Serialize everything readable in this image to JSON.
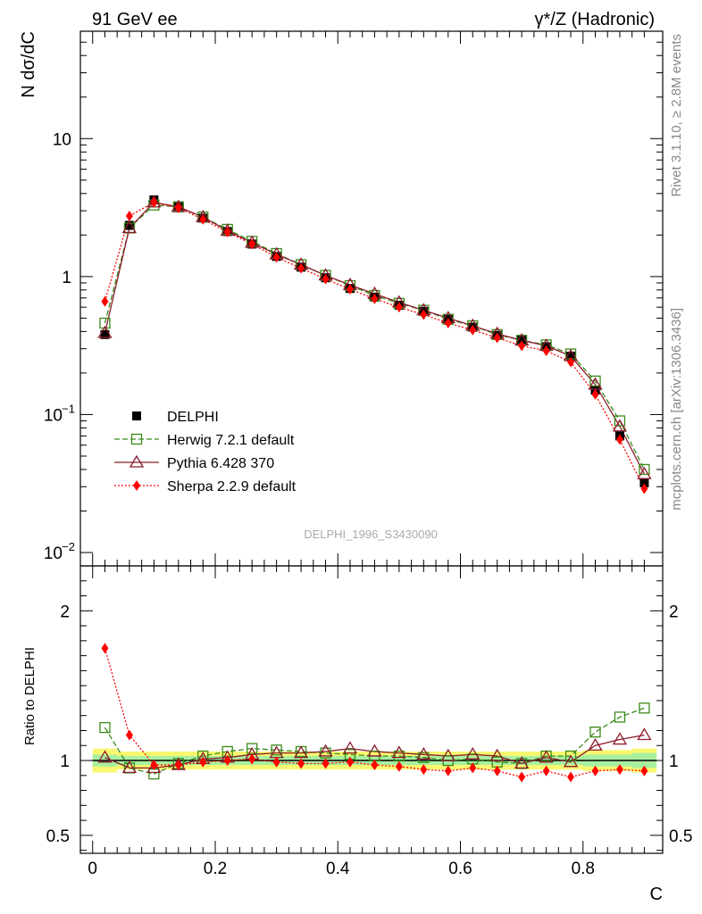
{
  "header": {
    "left_title": "91 GeV ee",
    "right_title": "γ*/Z (Hadronic)"
  },
  "side_labels": {
    "rivet": "Rivet 3.1.10, ≥ 2.8M events",
    "mcplots": "mcplots.cern.ch [arXiv:1306.3436]"
  },
  "watermark": "DELPHI_1996_S3430090",
  "colors": {
    "data": "#000000",
    "herwig": "#3a8a1a",
    "pythia": "#8b1a2b",
    "sherpa": "#ff0000",
    "band_inner": "#a8f0a0",
    "band_outer": "#f8f870"
  },
  "chart_data": [
    {
      "type": "line",
      "name": "main",
      "yscale": "log",
      "ylabel": "N dσ/dC",
      "xlim": [
        -0.02,
        0.93
      ],
      "ylim": [
        0.008,
        60
      ],
      "yticks": [
        {
          "value": 10,
          "label": "10"
        },
        {
          "value": 1,
          "label": "1"
        },
        {
          "value": 0.1,
          "label": "10",
          "sup": "−1"
        },
        {
          "value": 0.01,
          "label": "10",
          "sup": "−2"
        }
      ],
      "x": [
        0.02,
        0.06,
        0.1,
        0.14,
        0.18,
        0.22,
        0.26,
        0.3,
        0.34,
        0.38,
        0.42,
        0.46,
        0.5,
        0.54,
        0.58,
        0.62,
        0.66,
        0.7,
        0.74,
        0.78,
        0.82,
        0.86,
        0.9
      ],
      "legend_position": "lower-left",
      "series": [
        {
          "key": "data",
          "name": "DELPHI",
          "style": "marker-square",
          "values": [
            0.38,
            2.35,
            3.6,
            3.25,
            2.65,
            2.12,
            1.72,
            1.4,
            1.17,
            0.98,
            0.82,
            0.71,
            0.62,
            0.56,
            0.49,
            0.43,
            0.375,
            0.35,
            0.31,
            0.265,
            0.15,
            0.07,
            0.032
          ]
        },
        {
          "key": "herwig",
          "name": "Herwig 7.2.1 default",
          "style": "dashed-open-square",
          "values": [
            0.46,
            2.25,
            3.3,
            3.2,
            2.7,
            2.2,
            1.8,
            1.47,
            1.22,
            1.02,
            0.86,
            0.73,
            0.64,
            0.57,
            0.49,
            0.44,
            0.38,
            0.345,
            0.32,
            0.275,
            0.175,
            0.09,
            0.04
          ]
        },
        {
          "key": "pythia",
          "name": "Pythia 6.428 370",
          "style": "solid-open-triangle",
          "values": [
            0.39,
            2.25,
            3.45,
            3.2,
            2.7,
            2.15,
            1.76,
            1.45,
            1.22,
            1.02,
            0.87,
            0.75,
            0.65,
            0.57,
            0.5,
            0.44,
            0.385,
            0.345,
            0.315,
            0.265,
            0.165,
            0.082,
            0.037
          ]
        },
        {
          "key": "sherpa",
          "name": "Sherpa 2.2.9 default",
          "style": "dotted-diamond",
          "values": [
            0.66,
            2.75,
            3.45,
            3.15,
            2.6,
            2.1,
            1.72,
            1.38,
            1.15,
            0.96,
            0.81,
            0.69,
            0.6,
            0.53,
            0.46,
            0.41,
            0.36,
            0.315,
            0.29,
            0.24,
            0.14,
            0.066,
            0.029
          ]
        }
      ]
    },
    {
      "type": "line",
      "name": "ratio",
      "ylabel": "Ratio to DELPHI",
      "xlabel": "C",
      "xlim": [
        -0.02,
        0.93
      ],
      "ylim": [
        0.38,
        2.3
      ],
      "yticks": [
        {
          "value": 2,
          "label": "2"
        },
        {
          "value": 1,
          "label": "1"
        },
        {
          "value": 0.5,
          "label": "0.5"
        }
      ],
      "xticks": [
        {
          "value": 0,
          "label": "0"
        },
        {
          "value": 0.2,
          "label": "0.2"
        },
        {
          "value": 0.4,
          "label": "0.4"
        },
        {
          "value": 0.6,
          "label": "0.6"
        },
        {
          "value": 0.8,
          "label": "0.8"
        }
      ],
      "x": [
        0.02,
        0.06,
        0.1,
        0.14,
        0.18,
        0.22,
        0.26,
        0.3,
        0.34,
        0.38,
        0.42,
        0.46,
        0.5,
        0.54,
        0.58,
        0.62,
        0.66,
        0.7,
        0.74,
        0.78,
        0.82,
        0.86,
        0.9
      ],
      "band_inner": [
        0.04,
        0.03,
        0.03,
        0.03,
        0.03,
        0.03,
        0.03,
        0.03,
        0.03,
        0.03,
        0.03,
        0.03,
        0.03,
        0.03,
        0.03,
        0.03,
        0.03,
        0.03,
        0.03,
        0.03,
        0.04,
        0.04,
        0.05
      ],
      "band_outer": [
        0.08,
        0.06,
        0.06,
        0.06,
        0.06,
        0.06,
        0.06,
        0.06,
        0.06,
        0.06,
        0.06,
        0.06,
        0.06,
        0.06,
        0.06,
        0.06,
        0.06,
        0.06,
        0.06,
        0.06,
        0.07,
        0.07,
        0.08
      ],
      "series": [
        {
          "key": "herwig",
          "name": "Herwig 7.2.1 default",
          "values": [
            1.22,
            0.95,
            0.91,
            0.98,
            1.03,
            1.06,
            1.08,
            1.07,
            1.06,
            1.05,
            1.04,
            1.03,
            1.03,
            1.02,
            1.0,
            1.01,
            0.99,
            0.98,
            1.03,
            1.03,
            1.19,
            1.29,
            1.35
          ]
        },
        {
          "key": "pythia",
          "name": "Pythia 6.428 370",
          "values": [
            1.02,
            0.95,
            0.95,
            0.97,
            1.01,
            1.02,
            1.04,
            1.05,
            1.05,
            1.06,
            1.08,
            1.06,
            1.05,
            1.04,
            1.03,
            1.04,
            1.03,
            0.98,
            1.02,
            0.99,
            1.1,
            1.14,
            1.17
          ]
        },
        {
          "key": "sherpa",
          "name": "Sherpa 2.2.9 default",
          "values": [
            1.75,
            1.17,
            0.97,
            0.97,
            0.99,
            1.0,
            1.01,
            0.99,
            0.98,
            0.98,
            0.99,
            0.97,
            0.96,
            0.94,
            0.93,
            0.95,
            0.93,
            0.89,
            0.93,
            0.89,
            0.93,
            0.94,
            0.93
          ]
        }
      ]
    }
  ]
}
